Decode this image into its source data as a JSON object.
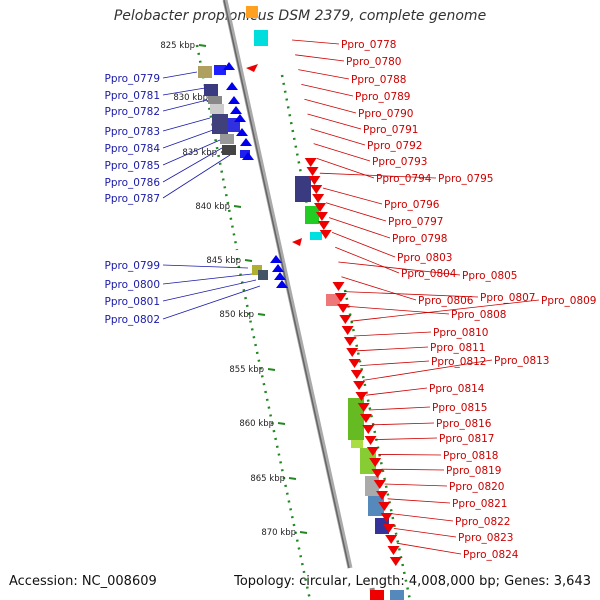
{
  "title": "Pelobacter propionicus DSM 2379, complete genome",
  "footer": {
    "accession_label": "Accession",
    "accession": "NC_008609",
    "topology_label": "Topology",
    "topology": "circular",
    "length_label": "Length",
    "length": "4,008,000 bp",
    "genes_label": "Genes",
    "genes": "3,643"
  },
  "colors": {
    "forward_label": "#1a1aa8",
    "reverse_label": "#cc0000",
    "forward_gene": "#0000ee",
    "reverse_gene": "#ee0000",
    "backbone": "#888888",
    "scale_dots": "#228822"
  },
  "scale_ticks": [
    "825 kbp",
    "830 kbp",
    "835 kbp",
    "840 kbp",
    "845 kbp",
    "850 kbp",
    "855 kbp",
    "860 kbp",
    "865 kbp",
    "870 kbp"
  ],
  "forward_genes": [
    "Ppro_0779",
    "Ppro_0781",
    "Ppro_0782",
    "Ppro_0783",
    "Ppro_0784",
    "Ppro_0785",
    "Ppro_0786",
    "Ppro_0787",
    "Ppro_0799",
    "Ppro_0800",
    "Ppro_0801",
    "Ppro_0802"
  ],
  "reverse_genes": [
    "Ppro_0778",
    "Ppro_0780",
    "Ppro_0788",
    "Ppro_0789",
    "Ppro_0790",
    "Ppro_0791",
    "Ppro_0792",
    "Ppro_0793",
    "Ppro_0794",
    "Ppro_0795",
    "Ppro_0796",
    "Ppro_0797",
    "Ppro_0798",
    "Ppro_0803",
    "Ppro_0804",
    "Ppro_0805",
    "Ppro_0806",
    "Ppro_0807",
    "Ppro_0808",
    "Ppro_0809",
    "Ppro_0810",
    "Ppro_0811",
    "Ppro_0812",
    "Ppro_0813",
    "Ppro_0814",
    "Ppro_0815",
    "Ppro_0816",
    "Ppro_0817",
    "Ppro_0818",
    "Ppro_0819",
    "Ppro_0820",
    "Ppro_0821",
    "Ppro_0822",
    "Ppro_0823",
    "Ppro_0824"
  ]
}
